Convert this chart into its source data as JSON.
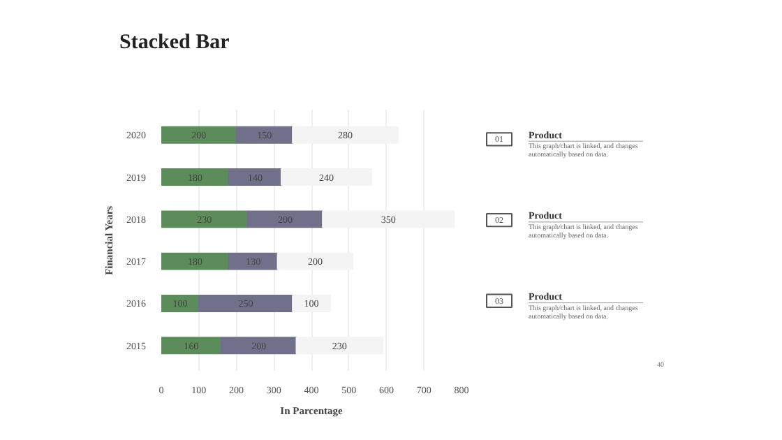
{
  "chart_data": {
    "type": "bar",
    "orientation": "horizontal",
    "stacked": true,
    "title": "Stacked Bar",
    "xlabel": "In Parcentage",
    "ylabel": "Financial Years",
    "categories": [
      "2020",
      "2019",
      "2018",
      "2017",
      "2016",
      "2015"
    ],
    "series": [
      {
        "color": "#5b8c5a",
        "values": [
          200,
          180,
          230,
          180,
          100,
          160
        ]
      },
      {
        "color": "#70708a",
        "values": [
          150,
          140,
          200,
          130,
          250,
          200
        ]
      },
      {
        "color": "#f4f4f4",
        "values": [
          280,
          240,
          350,
          200,
          100,
          230
        ]
      }
    ],
    "xlim": [
      0,
      800
    ],
    "xticks": [
      0,
      100,
      200,
      300,
      400,
      500,
      600,
      700,
      800
    ],
    "grid": "x",
    "data_labels": true,
    "annotations": [
      "01",
      "Product",
      "This graph/chart is linked, and changes automatically based on data.",
      "02",
      "Product",
      "This graph/chart is linked, and changes automatically based on data.",
      "03",
      "Product",
      "This graph/chart is linked, and changes automatically based on data.",
      "40"
    ]
  }
}
